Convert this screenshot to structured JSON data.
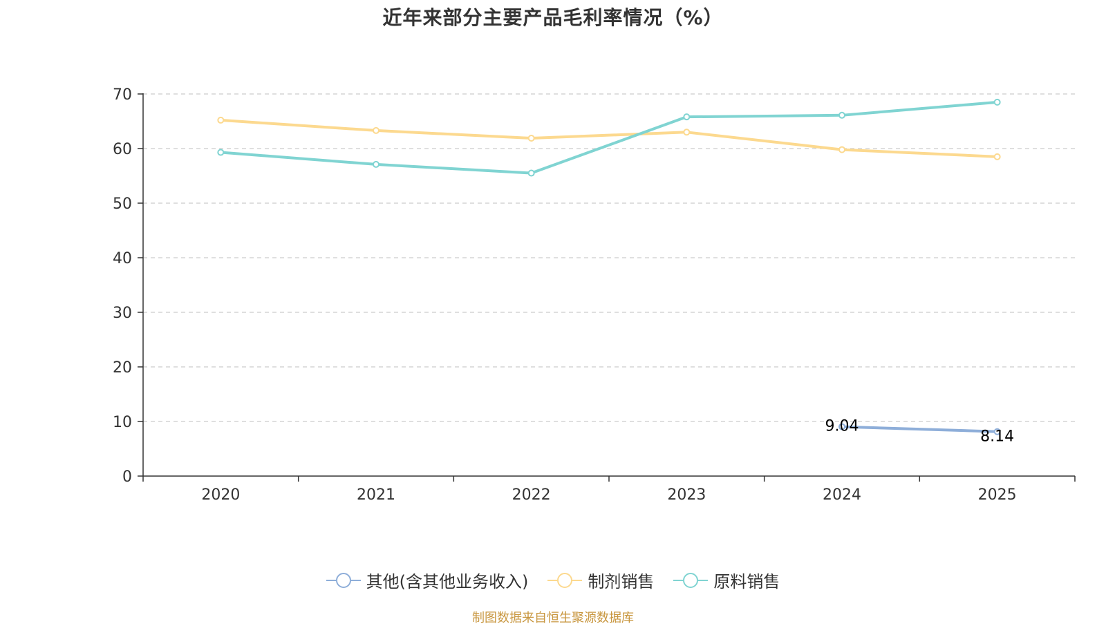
{
  "chart_data": {
    "type": "line",
    "title": "近年来部分主要产品毛利率情况（%）",
    "categories": [
      "2020",
      "2021",
      "2022",
      "2023",
      "2024",
      "2025"
    ],
    "ylim": [
      0,
      70
    ],
    "yticks": [
      0,
      10,
      20,
      30,
      40,
      50,
      60,
      70
    ],
    "xlabel": "",
    "ylabel": "",
    "grid": true,
    "legend_position": "bottom",
    "series": [
      {
        "name": "其他(含其他业务收入)",
        "color": "#8eaed9",
        "values": [
          null,
          null,
          null,
          null,
          9.04,
          8.14
        ],
        "show_labels": true,
        "labels": [
          null,
          null,
          null,
          null,
          "9.04",
          "8.14"
        ]
      },
      {
        "name": "制剂销售",
        "color": "#fcd98f",
        "values": [
          65.2,
          63.3,
          61.9,
          63.0,
          59.8,
          58.5
        ],
        "show_labels": false
      },
      {
        "name": "原料销售",
        "color": "#80d4d2",
        "values": [
          59.3,
          57.1,
          55.5,
          65.8,
          66.1,
          68.5
        ],
        "show_labels": false
      }
    ]
  },
  "source_note": "制图数据来自恒生聚源数据库"
}
